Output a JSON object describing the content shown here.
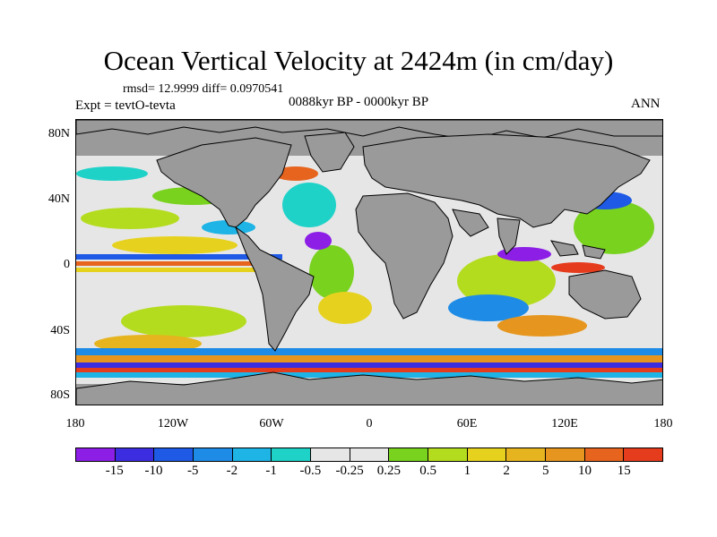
{
  "title": "Ocean Vertical Velocity at 2424m (in cm/day)",
  "stats": "rmsd= 12.9999 diff= 0.0970541",
  "experiment": "Expt = tevtO-tevta",
  "period": "0088kyr BP - 0000kyr BP",
  "season": "ANN",
  "map": {
    "land_color": "#9a9a9a",
    "lat_labels": [
      "80N",
      "40N",
      "0",
      "40S",
      "80S"
    ],
    "lon_labels": [
      "180",
      "120W",
      "60W",
      "0",
      "60E",
      "120E",
      "180"
    ]
  },
  "colorbar": {
    "colors": [
      "#8c1ee6",
      "#3c2ee0",
      "#1e5ae6",
      "#1e8ce6",
      "#1eb4e6",
      "#1ed2c8",
      "#e6e6e6",
      "#e6e6e6",
      "#78d21e",
      "#b4dc1e",
      "#e6d21e",
      "#e6b41e",
      "#e6961e",
      "#e6641e",
      "#e63c1e"
    ],
    "labels": [
      "-15",
      "-10",
      "-5",
      "-2",
      "-1",
      "-0.5",
      "-0.25",
      "0.25",
      "0.5",
      "1",
      "2",
      "5",
      "10",
      "15"
    ]
  }
}
